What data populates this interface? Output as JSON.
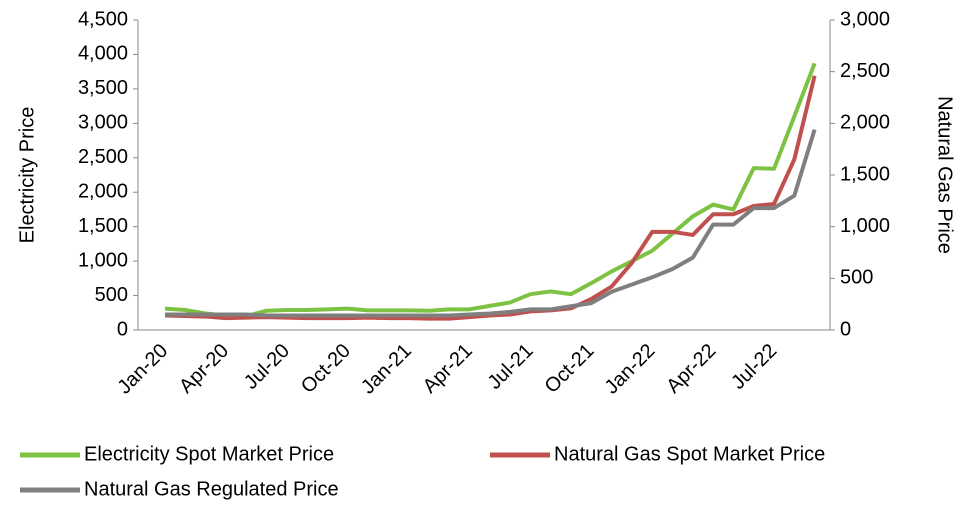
{
  "chart_data": {
    "type": "line",
    "y_label": "Electricity Price",
    "y2_label": "Natural Gas Price",
    "categories": [
      "Jan-20",
      null,
      null,
      "Apr-20",
      null,
      null,
      "Jul-20",
      null,
      null,
      "Oct-20",
      null,
      null,
      "Jan-21",
      null,
      null,
      "Apr-21",
      null,
      null,
      "Jul-21",
      null,
      null,
      "Oct-21",
      null,
      null,
      "Jan-22",
      null,
      null,
      "Apr-22",
      null,
      null,
      "Jul-22",
      null,
      null
    ],
    "series": [
      {
        "name": "Electricity Spot Market Price",
        "color": "#7dc242",
        "axis": "y",
        "values": [
          310,
          290,
          240,
          210,
          200,
          280,
          290,
          290,
          300,
          310,
          285,
          285,
          285,
          280,
          300,
          300,
          350,
          400,
          520,
          560,
          520,
          680,
          850,
          1000,
          1150,
          1400,
          1650,
          1820,
          1750,
          2350,
          2340,
          3100,
          3870
        ]
      },
      {
        "name": "Natural Gas Spot Market Price",
        "color": "#c0504d",
        "axis": "y2",
        "values": [
          140,
          135,
          130,
          115,
          120,
          125,
          120,
          115,
          115,
          115,
          120,
          115,
          115,
          110,
          110,
          125,
          140,
          150,
          180,
          190,
          210,
          300,
          420,
          650,
          950,
          950,
          920,
          1120,
          1120,
          1200,
          1220,
          1650,
          2460
        ]
      },
      {
        "name": "Natural Gas Regulated Price",
        "color": "#7f7f7f",
        "axis": "y2",
        "values": [
          150,
          150,
          150,
          150,
          150,
          140,
          140,
          140,
          140,
          140,
          140,
          140,
          140,
          140,
          140,
          150,
          160,
          175,
          200,
          200,
          230,
          260,
          370,
          440,
          510,
          590,
          700,
          1020,
          1020,
          1180,
          1180,
          1300,
          1940
        ]
      }
    ],
    "ylim": [
      0,
      4500
    ],
    "yticks": [
      0,
      500,
      {
        "value": 1000,
        "label": "1,000"
      },
      {
        "value": 1500,
        "label": "1,500"
      },
      {
        "value": 2000,
        "label": "2,000"
      },
      {
        "value": 2500,
        "label": "2,500"
      },
      {
        "value": 3000,
        "label": "3,000"
      },
      {
        "value": 3500,
        "label": "3,500"
      },
      {
        "value": 4000,
        "label": "4,000"
      },
      {
        "value": 4500,
        "label": "4,500"
      }
    ],
    "y2lim": [
      0,
      3000
    ],
    "y2ticks": [
      0,
      500,
      {
        "value": 1000,
        "label": "1,000"
      },
      {
        "value": 1500,
        "label": "1,500"
      },
      {
        "value": 2000,
        "label": "2,000"
      },
      {
        "value": 2500,
        "label": "2,500"
      },
      {
        "value": 3000,
        "label": "3,000"
      }
    ],
    "grid": false,
    "legend": "bottom"
  }
}
